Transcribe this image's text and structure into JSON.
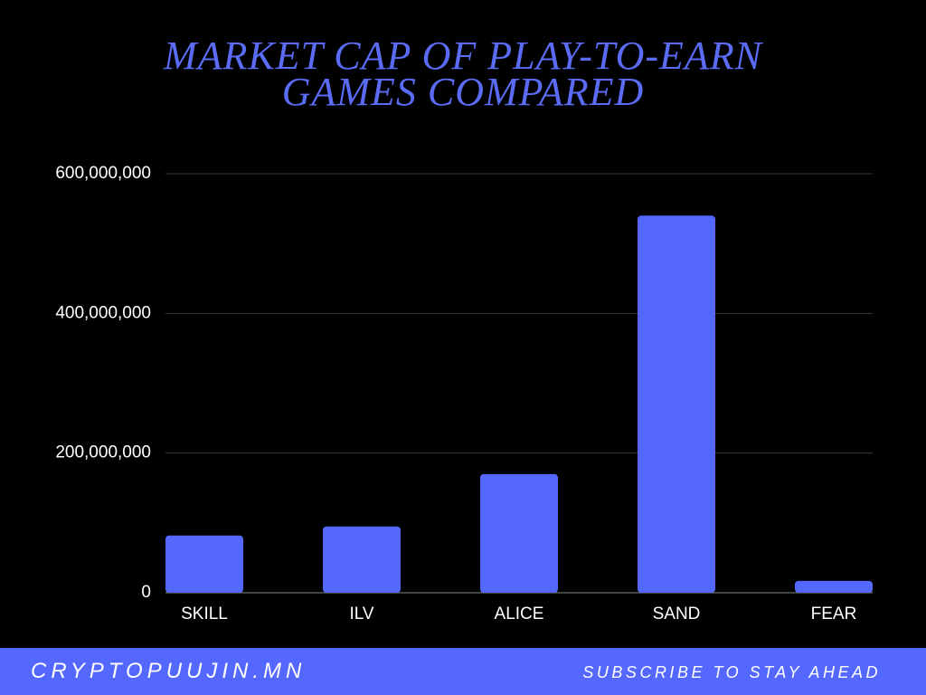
{
  "chart_data": {
    "type": "bar",
    "title": "MARKET CAP OF PLAY-TO-EARN GAMES COMPARED",
    "categories": [
      "SKILL",
      "ILV",
      "ALICE",
      "SAND",
      "FEAR"
    ],
    "values": [
      82000000,
      95000000,
      170000000,
      540000000,
      17000000
    ],
    "color": "#5468ff",
    "ylim": [
      0,
      600000000
    ],
    "yticks": [
      0,
      {
        "value": 200000000,
        "label": "200,000,000"
      },
      {
        "value": 400000000,
        "label": "400,000,000"
      },
      {
        "value": 600000000,
        "label": "600,000,000"
      }
    ],
    "grid": true
  },
  "footer": {
    "left": "CRYPTOPUUJIN.MN",
    "right": "SUBSCRIBE TO STAY AHEAD"
  }
}
